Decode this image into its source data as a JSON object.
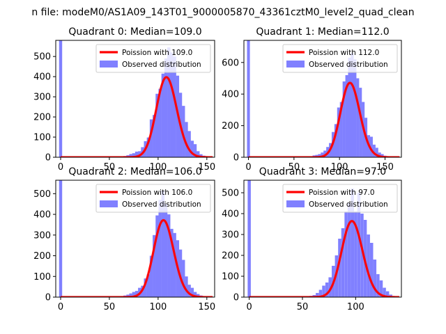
{
  "figure": {
    "suptitle": "n file: modeM0/AS1A09_143T01_9000005870_43361cztM0_level2_quad_clean"
  },
  "chart_data": [
    {
      "type": "bar",
      "title": "Quadrant 0: Median=109.0",
      "xlim": [
        -5,
        158
      ],
      "ylim": [
        0,
        580
      ],
      "xticks": [
        0,
        50,
        100,
        150
      ],
      "yticks": [
        0,
        100,
        200,
        300,
        400,
        500
      ],
      "legend_placement": "upper right",
      "poisson": {
        "label": "Poission with 109.0",
        "mean": 109.0,
        "total": 10400,
        "color": "#ff0000"
      },
      "hist": {
        "label": "Observed distribution",
        "color": "#8080ff",
        "bin_width": 3.15,
        "zero_bin_count": 580,
        "bins_x": [
          63,
          66,
          69,
          72,
          75,
          78,
          81,
          84,
          87,
          90,
          93,
          96,
          99,
          102,
          105,
          108,
          111,
          114,
          117,
          120,
          123,
          126,
          129,
          132,
          135,
          138,
          141,
          144,
          147,
          150
        ],
        "bins_y": [
          2,
          6,
          10,
          16,
          20,
          28,
          30,
          50,
          80,
          98,
          188,
          210,
          315,
          340,
          415,
          490,
          545,
          520,
          500,
          405,
          320,
          255,
          175,
          130,
          82,
          65,
          30,
          15,
          8,
          2
        ]
      }
    },
    {
      "type": "bar",
      "title": "Quadrant 1: Median=112.0",
      "xlim": [
        -5,
        168
      ],
      "ylim": [
        0,
        740
      ],
      "xticks": [
        0,
        50,
        100,
        150
      ],
      "yticks": [
        0,
        200,
        400,
        600
      ],
      "legend_placement": "upper right",
      "poisson": {
        "label": "Poission with 112.0",
        "mean": 112.0,
        "total": 12500,
        "color": "#ff0000"
      },
      "hist": {
        "label": "Observed distribution",
        "color": "#8080ff",
        "bin_width": 3.15,
        "zero_bin_count": 740,
        "bins_x": [
          66,
          69,
          72,
          75,
          78,
          81,
          84,
          87,
          90,
          93,
          96,
          99,
          102,
          105,
          108,
          111,
          114,
          117,
          120,
          123,
          126,
          129,
          132,
          135,
          138,
          141,
          144,
          147,
          150,
          153,
          156
        ],
        "bins_y": [
          3,
          6,
          12,
          15,
          20,
          30,
          42,
          65,
          90,
          160,
          210,
          315,
          350,
          480,
          520,
          630,
          660,
          620,
          500,
          440,
          350,
          250,
          140,
          130,
          80,
          60,
          30,
          20,
          10,
          5,
          2
        ]
      }
    },
    {
      "type": "bar",
      "title": "Quadrant 2: Median=106.0",
      "xlim": [
        -5,
        158
      ],
      "ylim": [
        0,
        565
      ],
      "xticks": [
        0,
        50,
        100,
        150
      ],
      "yticks": [
        0,
        100,
        200,
        300,
        400,
        500
      ],
      "legend_placement": "upper right",
      "poisson": {
        "label": "Poission with 106.0",
        "mean": 106.0,
        "total": 9600,
        "color": "#ff0000"
      },
      "hist": {
        "label": "Observed distribution",
        "color": "#8080ff",
        "bin_width": 3.15,
        "zero_bin_count": 565,
        "bins_x": [
          60,
          63,
          66,
          69,
          72,
          75,
          78,
          81,
          84,
          87,
          90,
          93,
          96,
          99,
          102,
          105,
          108,
          111,
          114,
          117,
          120,
          123,
          126,
          129,
          132,
          135,
          138,
          141,
          144,
          147
        ],
        "bins_y": [
          2,
          5,
          8,
          12,
          18,
          25,
          30,
          45,
          55,
          90,
          110,
          200,
          300,
          395,
          470,
          515,
          450,
          400,
          330,
          310,
          275,
          230,
          180,
          100,
          60,
          45,
          25,
          15,
          8,
          3
        ]
      }
    },
    {
      "type": "bar",
      "title": "Quadrant 3: Median=97.0",
      "xlim": [
        -5,
        143
      ],
      "ylim": [
        0,
        560
      ],
      "xticks": [
        0,
        50,
        100
      ],
      "yticks": [
        0,
        100,
        200,
        300,
        400,
        500
      ],
      "legend_placement": "upper right",
      "poisson": {
        "label": "Poission with 97.0",
        "mean": 97.0,
        "total": 9000,
        "color": "#ff0000"
      },
      "hist": {
        "label": "Observed distribution",
        "color": "#8080ff",
        "bin_width": 2.95,
        "zero_bin_count": 560,
        "bins_x": [
          55,
          58,
          61,
          64,
          67,
          70,
          73,
          76,
          79,
          82,
          85,
          88,
          91,
          94,
          97,
          100,
          103,
          106,
          109,
          112,
          115,
          118,
          121,
          124,
          127,
          130,
          133,
          136
        ],
        "bins_y": [
          3,
          6,
          10,
          20,
          35,
          55,
          70,
          95,
          150,
          200,
          280,
          330,
          410,
          450,
          520,
          410,
          500,
          400,
          370,
          300,
          260,
          180,
          110,
          80,
          45,
          28,
          12,
          5
        ]
      }
    }
  ]
}
